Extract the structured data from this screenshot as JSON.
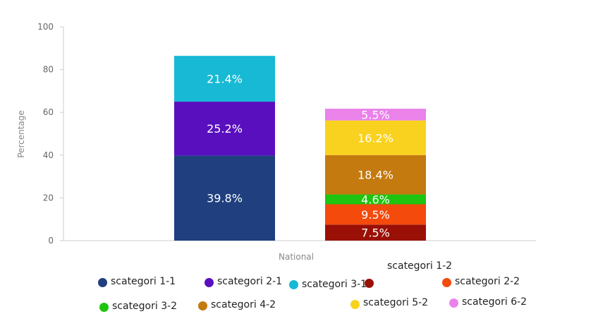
{
  "chart_data": {
    "type": "bar",
    "stacked": true,
    "categories": [
      "National"
    ],
    "ylabel": "Percentage",
    "ylim": [
      0,
      100
    ],
    "yticks": [
      0,
      20,
      40,
      60,
      80,
      100
    ],
    "grid": false,
    "legend_position": "bottom",
    "stacks": [
      {
        "segments": [
          {
            "name": "scategori 1-1",
            "value": 39.8,
            "label": "39.8%",
            "color": "#1f3f7f"
          },
          {
            "name": "scategori 2-1",
            "value": 25.2,
            "label": "25.2%",
            "color": "#5a0fbf"
          },
          {
            "name": "scategori 3-1",
            "value": 21.4,
            "label": "21.4%",
            "color": "#17b9d4"
          }
        ]
      },
      {
        "segments": [
          {
            "name": "scategori 1-2",
            "value": 7.5,
            "label": "7.5%",
            "color": "#9b1006"
          },
          {
            "name": "scategori 2-2",
            "value": 9.5,
            "label": "9.5%",
            "color": "#f44a0c"
          },
          {
            "name": "scategori 3-2",
            "value": 4.6,
            "label": "4.6%",
            "color": "#1ec40f"
          },
          {
            "name": "scategori 4-2",
            "value": 18.4,
            "label": "18.4%",
            "color": "#c47a0f"
          },
          {
            "name": "scategori 5-2",
            "value": 16.2,
            "label": "16.2%",
            "color": "#f9d21f"
          },
          {
            "name": "scategori 6-2",
            "value": 5.5,
            "label": "5.5%",
            "color": "#ea82ea"
          }
        ]
      }
    ],
    "legend": [
      {
        "name": "scategori 1-1",
        "color": "#1f3f7f"
      },
      {
        "name": "scategori 2-1",
        "color": "#5a0fbf"
      },
      {
        "name": "scategori 3-1",
        "color": "#17b9d4"
      },
      {
        "name": "scategori 1-2",
        "color": "#9b1006"
      },
      {
        "name": "scategori 2-2",
        "color": "#f44a0c"
      },
      {
        "name": "scategori 3-2",
        "color": "#1ec40f"
      },
      {
        "name": "scategori 4-2",
        "color": "#c47a0f"
      },
      {
        "name": "scategori 5-2",
        "color": "#f9d21f"
      },
      {
        "name": "scategori 6-2",
        "color": "#ea82ea"
      }
    ]
  }
}
